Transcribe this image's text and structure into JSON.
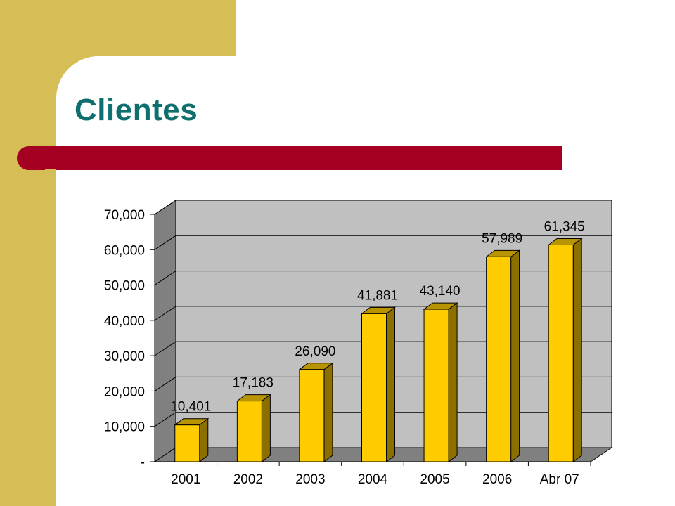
{
  "slide": {
    "title": "Clientes"
  },
  "colors": {
    "accent_band": "#D6BE57",
    "title": "#0F6E6E",
    "rule": "#A50021",
    "bar": "#FFCC00",
    "plot_wall": "#C0C0C0"
  },
  "chart_data": {
    "type": "bar",
    "categories": [
      "2001",
      "2002",
      "2003",
      "2004",
      "2005",
      "2006",
      "Abr 07"
    ],
    "values": [
      10401,
      17183,
      26090,
      41881,
      43140,
      57989,
      61345
    ],
    "value_labels": [
      "10,401",
      "17,183",
      "26,090",
      "41,881",
      "43,140",
      "57,989",
      "61,345"
    ],
    "ylim": [
      0,
      70000
    ],
    "yticks": [
      0,
      10000,
      20000,
      30000,
      40000,
      50000,
      60000,
      70000
    ],
    "ytick_labels": [
      "-",
      "10,000",
      "20,000",
      "30,000",
      "40,000",
      "50,000",
      "60,000",
      "70,000"
    ],
    "grid": true,
    "style": "3d"
  }
}
